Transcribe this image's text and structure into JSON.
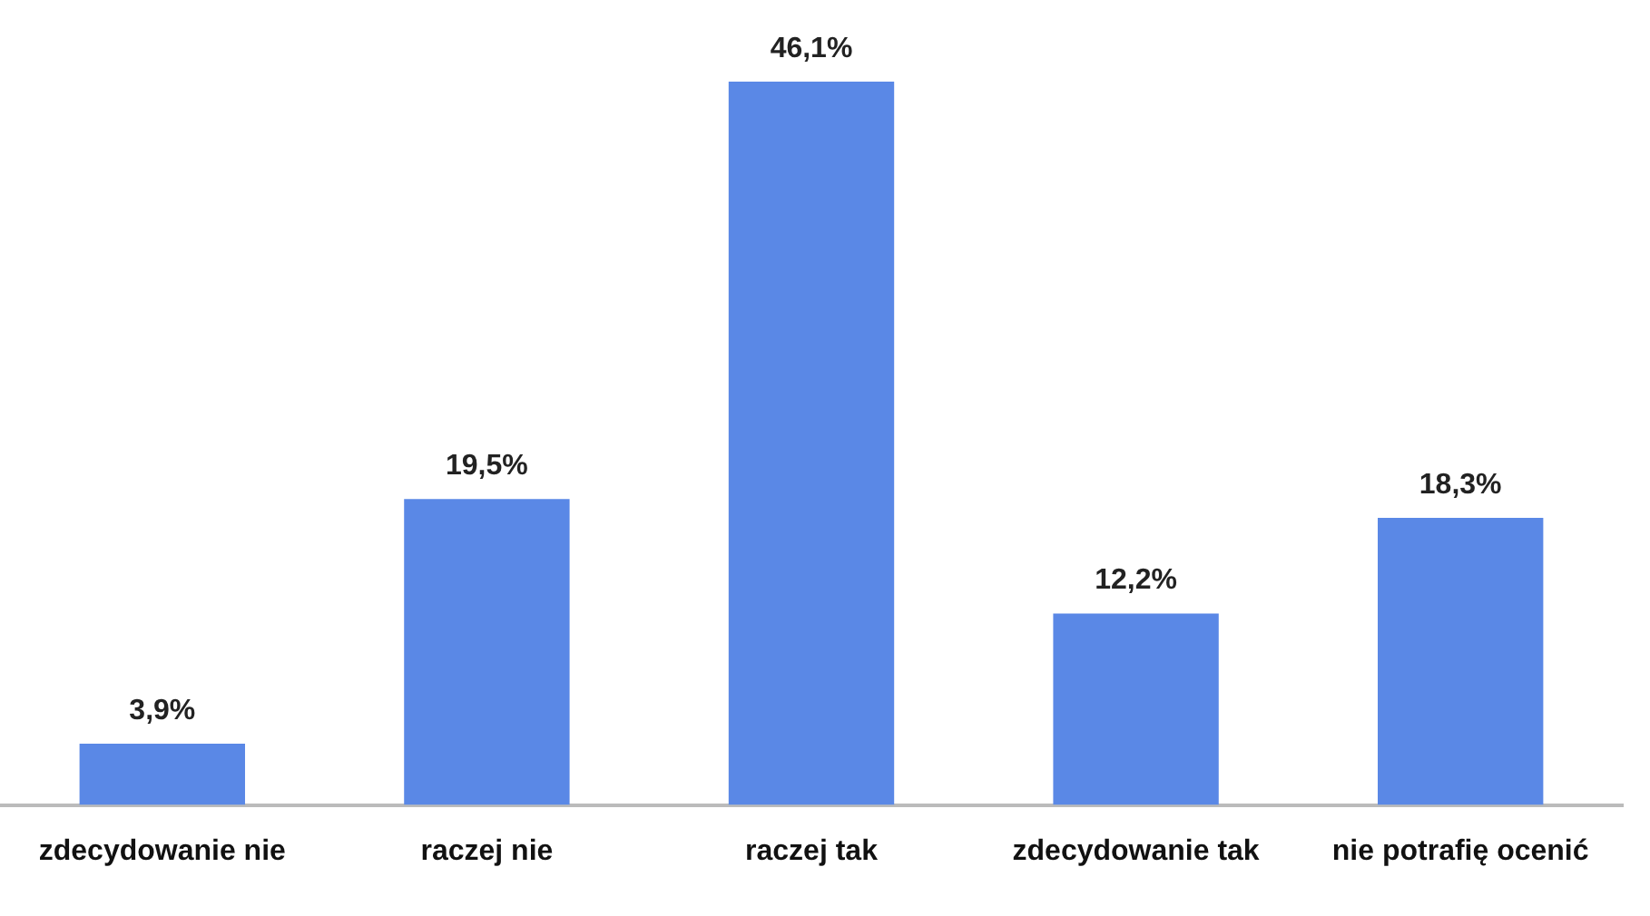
{
  "chart_data": {
    "type": "bar",
    "categories": [
      "zdecydowanie nie",
      "raczej nie",
      "raczej tak",
      "zdecydowanie tak",
      "nie potrafię ocenić"
    ],
    "values": [
      3.9,
      19.5,
      46.1,
      12.2,
      18.3
    ],
    "value_labels": [
      "3,9%",
      "19,5%",
      "46,1%",
      "12,2%",
      "18,3%"
    ],
    "color": "#5a88e6",
    "grid": false,
    "legend": false
  }
}
